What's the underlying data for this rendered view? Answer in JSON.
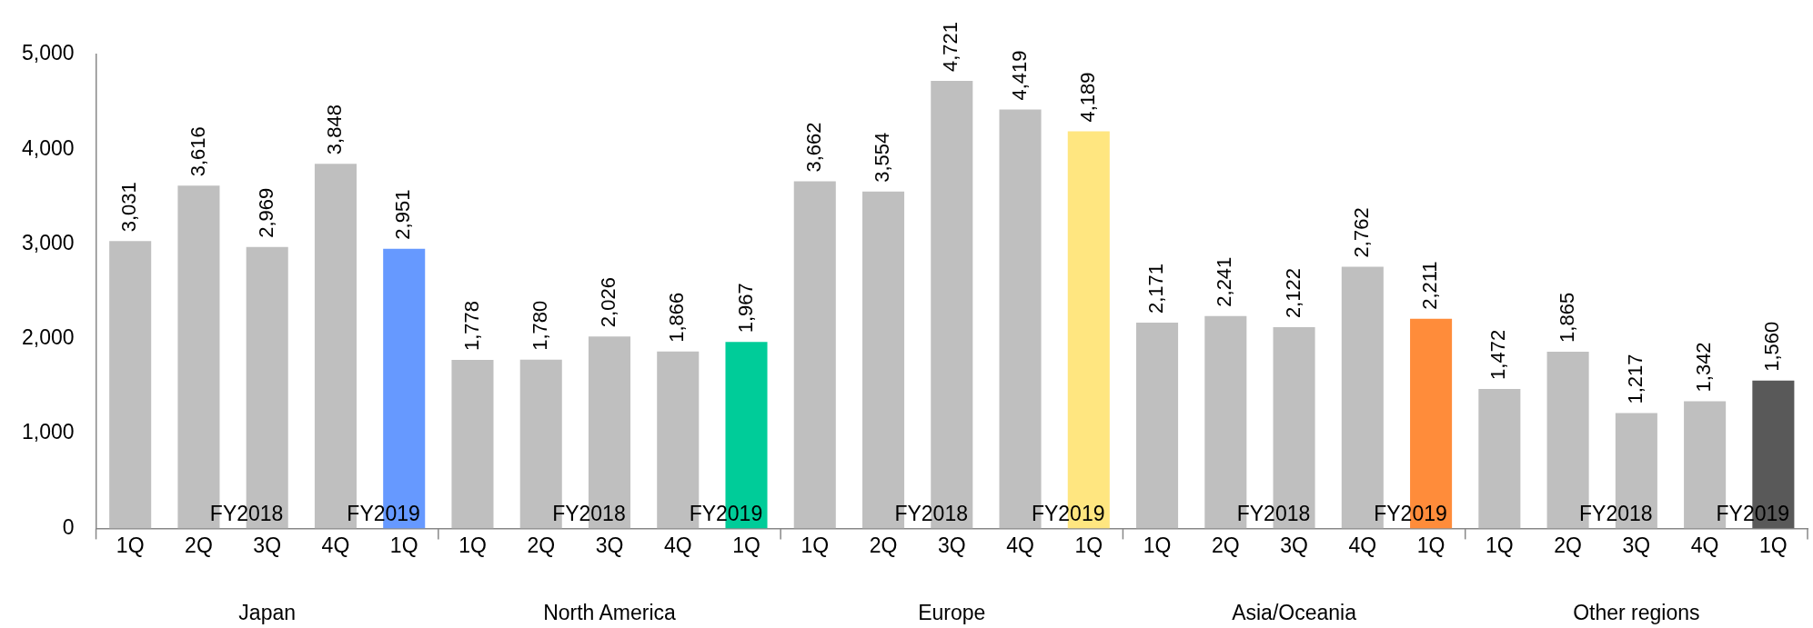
{
  "chart_data": {
    "type": "bar",
    "categories": [
      "1Q",
      "2Q",
      "3Q",
      "4Q",
      "1Q",
      "1Q",
      "2Q",
      "3Q",
      "4Q",
      "1Q",
      "1Q",
      "2Q",
      "3Q",
      "4Q",
      "1Q",
      "1Q",
      "2Q",
      "3Q",
      "4Q",
      "1Q",
      "1Q",
      "2Q",
      "3Q",
      "4Q",
      "1Q"
    ],
    "values": [
      3031,
      3616,
      2969,
      3848,
      2951,
      1778,
      1780,
      2026,
      1866,
      1967,
      3662,
      3554,
      4721,
      4419,
      4189,
      2171,
      2241,
      2122,
      2762,
      2211,
      1472,
      1865,
      1217,
      1342,
      1560
    ],
    "colors": [
      "#bfbfbf",
      "#bfbfbf",
      "#bfbfbf",
      "#bfbfbf",
      "#6699ff",
      "#bfbfbf",
      "#bfbfbf",
      "#bfbfbf",
      "#bfbfbf",
      "#00cc99",
      "#bfbfbf",
      "#bfbfbf",
      "#bfbfbf",
      "#bfbfbf",
      "#ffe680",
      "#bfbfbf",
      "#bfbfbf",
      "#bfbfbf",
      "#bfbfbf",
      "#ff8c3a",
      "#bfbfbf",
      "#bfbfbf",
      "#bfbfbf",
      "#bfbfbf",
      "#595959"
    ],
    "ylim": [
      0,
      5000
    ],
    "yticks": [
      {
        "value": 0,
        "label": "0"
      },
      {
        "value": 1000,
        "label": "1,000"
      },
      {
        "value": 2000,
        "label": "2,000"
      },
      {
        "value": 3000,
        "label": "3,000"
      },
      {
        "value": 4000,
        "label": "4,000"
      },
      {
        "value": 5000,
        "label": "5,000"
      }
    ],
    "value_labels": [
      "3,031",
      "3,616",
      "2,969",
      "3,848",
      "2,951",
      "1,778",
      "1,780",
      "2,026",
      "1,866",
      "1,967",
      "3,662",
      "3,554",
      "4,721",
      "4,419",
      "4,189",
      "2,171",
      "2,241",
      "2,122",
      "2,762",
      "2,211",
      "1,472",
      "1,865",
      "1,217",
      "1,342",
      "1,560"
    ],
    "grid": false,
    "legend": false,
    "annotations": [
      "Japan",
      "FY2018",
      "FY2019",
      "North America",
      "FY2018",
      "FY2019",
      "Europe",
      "FY2018",
      "FY2019",
      "Asia/Oceania",
      "FY2018",
      "FY2019",
      "Other regions",
      "FY2018",
      "FY2019"
    ]
  }
}
